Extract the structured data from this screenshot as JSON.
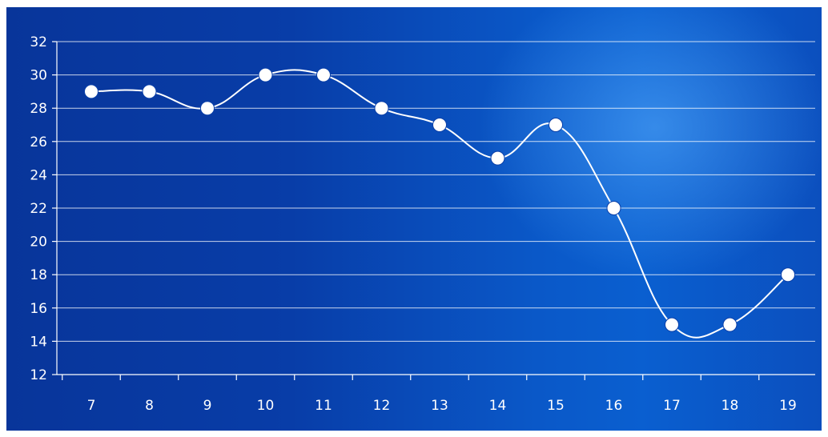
{
  "chart_data": {
    "type": "line",
    "title": "",
    "xlabel": "",
    "ylabel": "",
    "x": [
      7,
      8,
      9,
      10,
      11,
      12,
      13,
      14,
      15,
      16,
      17,
      18,
      19
    ],
    "categories": [
      "7",
      "8",
      "9",
      "10",
      "11",
      "12",
      "13",
      "14",
      "15",
      "16",
      "17",
      "18",
      "19"
    ],
    "series": [
      {
        "values": [
          29,
          29,
          28,
          30,
          30,
          28,
          27,
          25,
          27,
          22,
          15,
          15,
          18
        ]
      }
    ],
    "ylim": [
      12,
      32
    ],
    "yticks": [
      "12",
      "14",
      "16",
      "18",
      "20",
      "22",
      "24",
      "26",
      "28",
      "30",
      "32"
    ],
    "grid": true,
    "smooth": true,
    "markers": true,
    "colors": {
      "line": "#ffffff",
      "marker": "#ffffff",
      "grid": "#ffffff",
      "background_start": "#08359a",
      "background_end": "#0a5fd0"
    }
  }
}
